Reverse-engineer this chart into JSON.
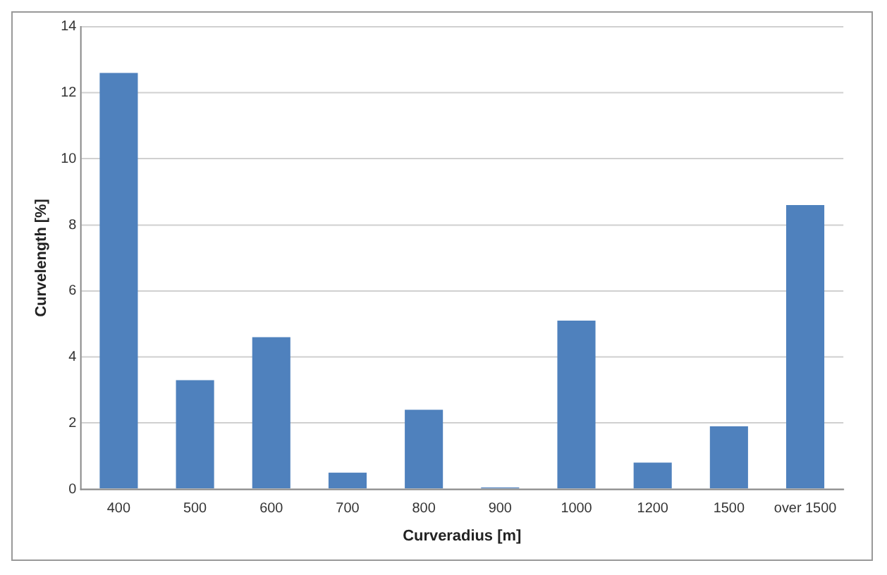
{
  "chart_data": {
    "type": "bar",
    "xlabel": "Curveradius [m]",
    "ylabel": "Curvelength [%]",
    "categories": [
      "400",
      "500",
      "600",
      "700",
      "800",
      "900",
      "1000",
      "1200",
      "1500",
      "over 1500"
    ],
    "values": [
      12.6,
      3.3,
      4.6,
      0.5,
      2.4,
      0.05,
      5.1,
      0.8,
      1.9,
      8.6
    ],
    "color": "#4f81bd",
    "ylim": [
      0,
      14
    ],
    "yticks": [
      0,
      2,
      4,
      6,
      8,
      10,
      12,
      14
    ],
    "grid": "y",
    "legend": false
  }
}
